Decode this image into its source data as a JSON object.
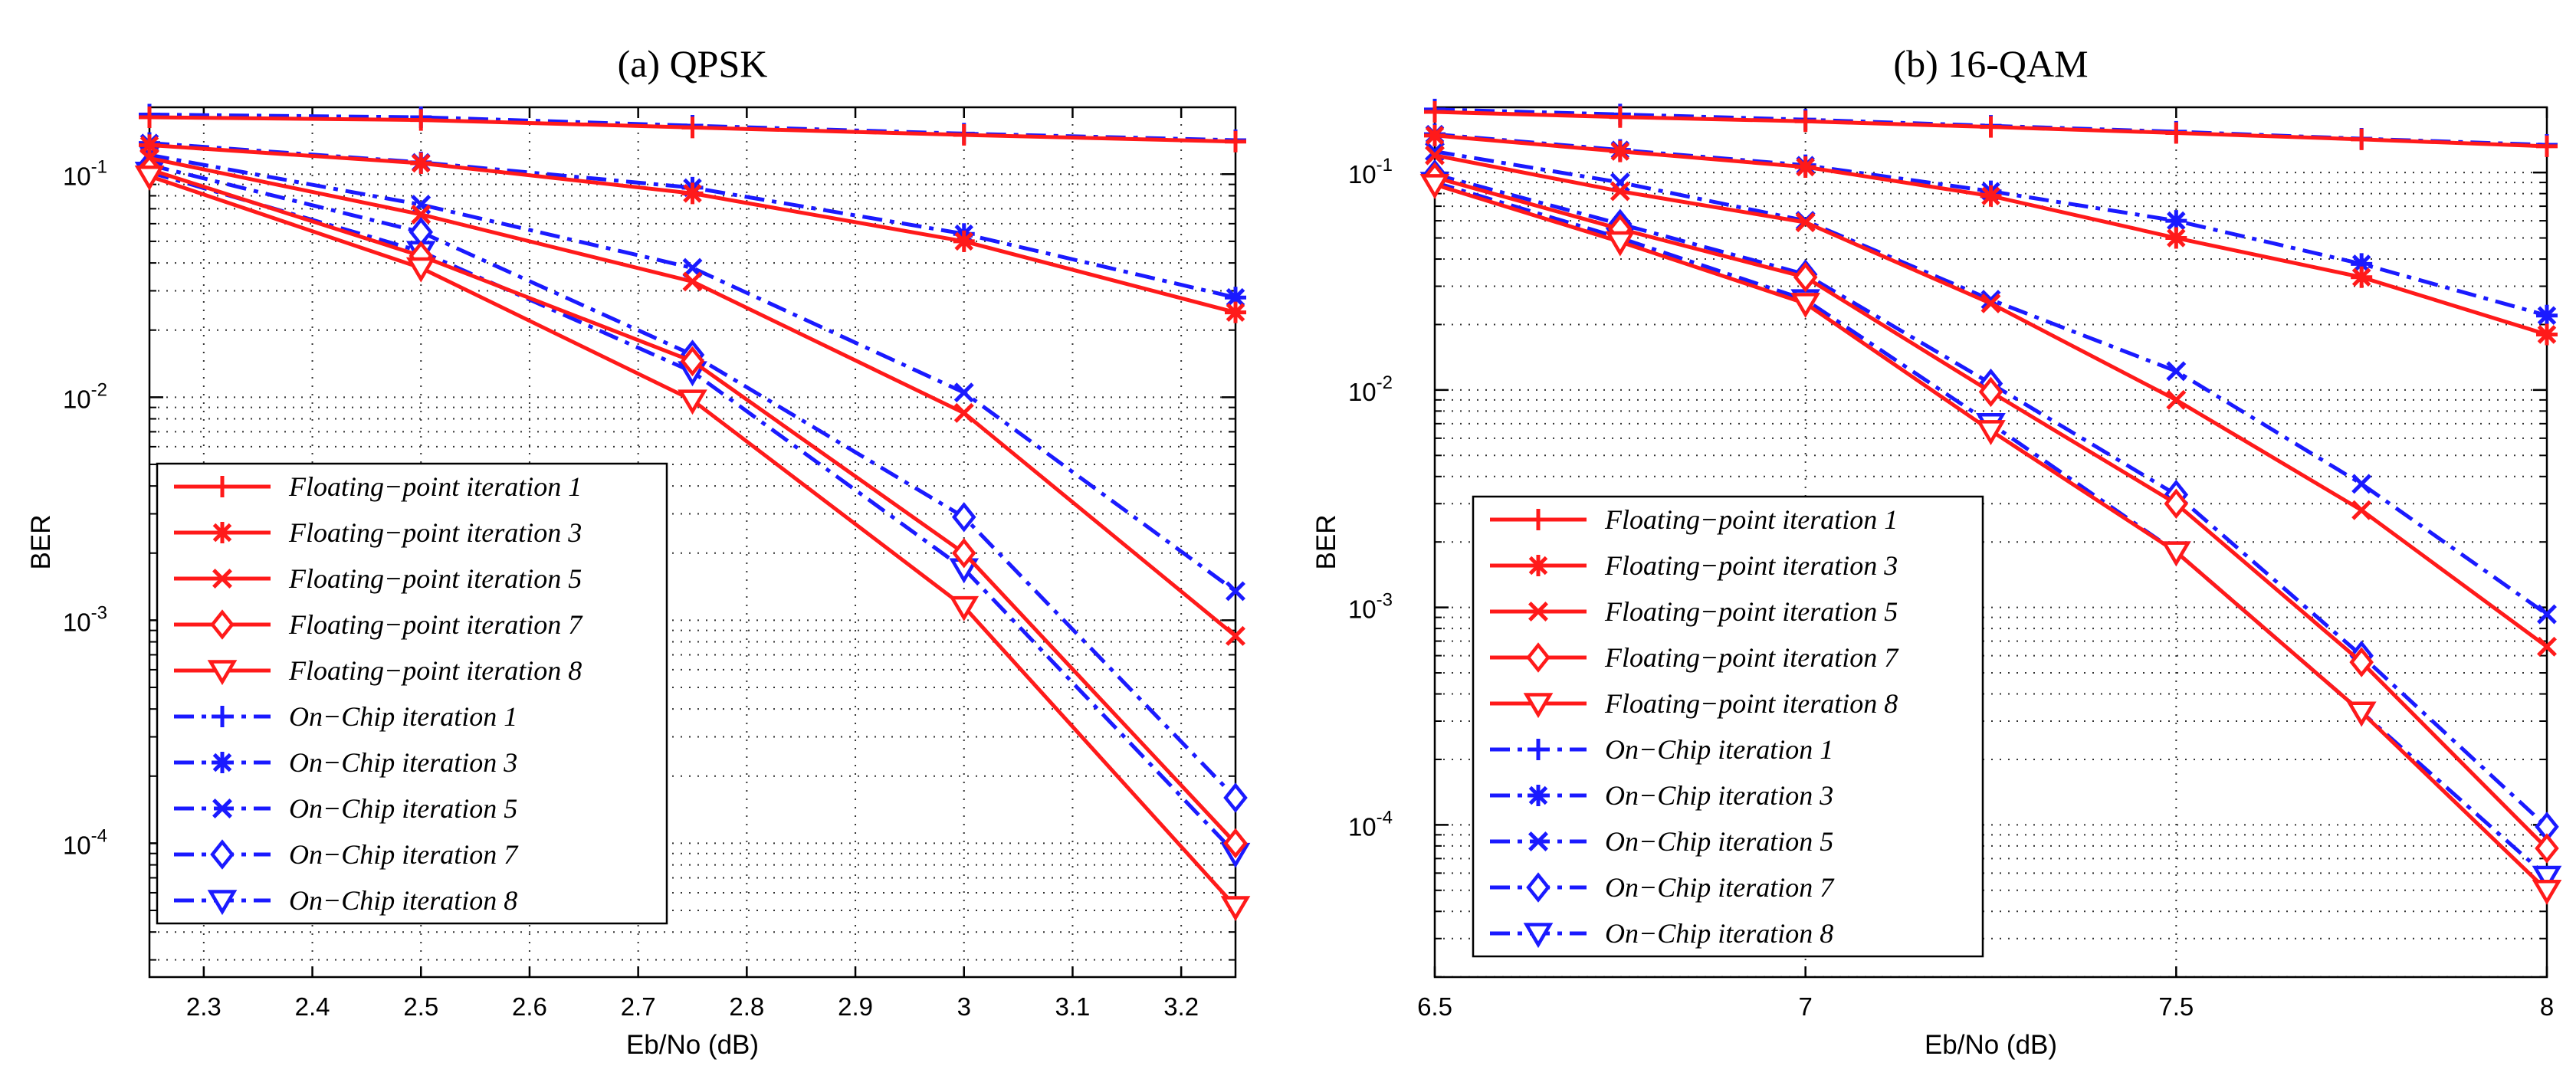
{
  "chart_data": [
    {
      "type": "line",
      "title": "(a)   QPSK",
      "xlabel": "Eb/No (dB)",
      "ylabel": "BER",
      "yscale": "log",
      "xlim": [
        2.25,
        3.25
      ],
      "ylim_exp": [
        -4.6,
        -0.7
      ],
      "xticks": [
        "2.3",
        "2.4",
        "2.5",
        "2.6",
        "2.7",
        "2.8",
        "2.9",
        "3",
        "3.1",
        "3.2"
      ],
      "xtick_values": [
        2.3,
        2.4,
        2.5,
        2.6,
        2.7,
        2.8,
        2.9,
        3.0,
        3.1,
        3.2
      ],
      "yticks": [
        {
          "base": "10",
          "exp": "-1",
          "value_exp": -1
        },
        {
          "base": "10",
          "exp": "-2",
          "value_exp": -2
        },
        {
          "base": "10",
          "exp": "-3",
          "value_exp": -3
        },
        {
          "base": "10",
          "exp": "-4",
          "value_exp": -4
        }
      ],
      "x": [
        2.25,
        2.5,
        2.75,
        3.0,
        3.25
      ],
      "legend_position": "bottom-left",
      "series": [
        {
          "name": "Floating−point iteration 1",
          "style": "float",
          "marker": "plus",
          "values": [
            0.18,
            0.175,
            0.162,
            0.15,
            0.14
          ]
        },
        {
          "name": "Floating−point iteration 3",
          "style": "float",
          "marker": "star",
          "values": [
            0.135,
            0.112,
            0.082,
            0.05,
            0.024
          ]
        },
        {
          "name": "Floating−point iteration 5",
          "style": "float",
          "marker": "x",
          "values": [
            0.118,
            0.066,
            0.033,
            0.0085,
            0.00085
          ]
        },
        {
          "name": "Floating−point iteration 7",
          "style": "float",
          "marker": "diamond",
          "values": [
            0.105,
            0.043,
            0.0145,
            0.002,
            0.0001
          ]
        },
        {
          "name": "Floating−point iteration 8",
          "style": "float",
          "marker": "triangle",
          "values": [
            0.098,
            0.038,
            0.0097,
            0.00115,
            5.2e-05
          ]
        },
        {
          "name": "On−Chip iteration 1",
          "style": "chip",
          "marker": "plus",
          "values": [
            0.185,
            0.18,
            0.165,
            0.152,
            0.142
          ]
        },
        {
          "name": "On−Chip iteration 3",
          "style": "chip",
          "marker": "star",
          "values": [
            0.138,
            0.113,
            0.087,
            0.054,
            0.028
          ]
        },
        {
          "name": "On−Chip iteration 5",
          "style": "chip",
          "marker": "x",
          "values": [
            0.122,
            0.073,
            0.038,
            0.0105,
            0.00135
          ]
        },
        {
          "name": "On−Chip iteration 7",
          "style": "chip",
          "marker": "diamond",
          "values": [
            0.11,
            0.055,
            0.0155,
            0.0029,
            0.00016
          ]
        },
        {
          "name": "On−Chip iteration 8",
          "style": "chip",
          "marker": "triangle",
          "values": [
            0.102,
            0.045,
            0.013,
            0.0017,
            9e-05
          ]
        }
      ]
    },
    {
      "type": "line",
      "title": "(b)   16-QAM",
      "xlabel": "Eb/No (dB)",
      "ylabel": "BER",
      "yscale": "log",
      "xlim": [
        6.5,
        8.0
      ],
      "ylim_exp": [
        -4.7,
        -0.7
      ],
      "xticks": [
        "6.5",
        "7",
        "7.5",
        "8"
      ],
      "xtick_values": [
        6.5,
        7.0,
        7.5,
        8.0
      ],
      "yticks": [
        {
          "base": "10",
          "exp": "-1",
          "value_exp": -1
        },
        {
          "base": "10",
          "exp": "-2",
          "value_exp": -2
        },
        {
          "base": "10",
          "exp": "-3",
          "value_exp": -3
        },
        {
          "base": "10",
          "exp": "-4",
          "value_exp": -4
        }
      ],
      "x": [
        6.5,
        6.75,
        7.0,
        7.25,
        7.5,
        7.75,
        8.0
      ],
      "legend_position": "bottom-left",
      "series": [
        {
          "name": "Floating−point iteration 1",
          "style": "float",
          "marker": "plus",
          "values": [
            0.19,
            0.18,
            0.172,
            0.162,
            0.152,
            0.142,
            0.132
          ]
        },
        {
          "name": "Floating−point iteration 3",
          "style": "float",
          "marker": "star",
          "values": [
            0.148,
            0.125,
            0.106,
            0.078,
            0.05,
            0.033,
            0.018
          ]
        },
        {
          "name": "Floating−point iteration 5",
          "style": "float",
          "marker": "x",
          "values": [
            0.12,
            0.082,
            0.059,
            0.025,
            0.009,
            0.0028,
            0.00066
          ]
        },
        {
          "name": "Floating−point iteration 7",
          "style": "float",
          "marker": "diamond",
          "values": [
            0.095,
            0.055,
            0.033,
            0.0098,
            0.003,
            0.00056,
            7.8e-05
          ]
        },
        {
          "name": "Floating−point iteration 8",
          "style": "float",
          "marker": "triangle",
          "values": [
            0.088,
            0.048,
            0.025,
            0.0065,
            0.0018,
            0.00033,
            5e-05
          ]
        },
        {
          "name": "On−Chip iteration 1",
          "style": "chip",
          "marker": "plus",
          "values": [
            0.195,
            0.185,
            0.175,
            0.164,
            0.154,
            0.143,
            0.134
          ]
        },
        {
          "name": "On−Chip iteration 3",
          "style": "chip",
          "marker": "star",
          "values": [
            0.15,
            0.127,
            0.108,
            0.082,
            0.06,
            0.038,
            0.022
          ]
        },
        {
          "name": "On−Chip iteration 5",
          "style": "chip",
          "marker": "x",
          "values": [
            0.125,
            0.09,
            0.06,
            0.026,
            0.0122,
            0.0037,
            0.00093
          ]
        },
        {
          "name": "On−Chip iteration 7",
          "style": "chip",
          "marker": "diamond",
          "values": [
            0.098,
            0.058,
            0.034,
            0.0107,
            0.0033,
            0.0006,
            9.8e-05
          ]
        },
        {
          "name": "On−Chip iteration 8",
          "style": "chip",
          "marker": "triangle",
          "values": [
            0.09,
            0.05,
            0.026,
            0.007,
            0.0018,
            0.00033,
            5.8e-05
          ]
        }
      ]
    }
  ],
  "colors": {
    "float": "#ff1a1a",
    "chip": "#1a1aff",
    "grid": "#333333",
    "axis": "#000000"
  }
}
